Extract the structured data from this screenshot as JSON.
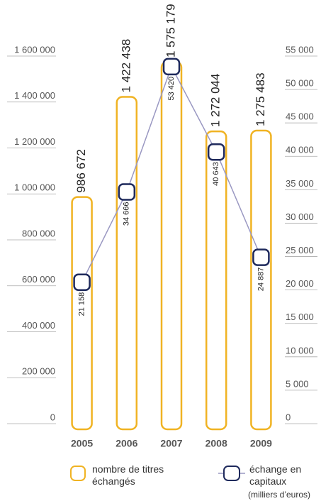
{
  "chart_data": {
    "type": "bar",
    "categories": [
      "2005",
      "2006",
      "2007",
      "2008",
      "2009"
    ],
    "series": [
      {
        "name": "nombre de titres échangés",
        "color": "#f0b323",
        "values": [
          986672,
          1422438,
          1575179,
          1272044,
          1275483
        ],
        "value_labels": [
          "986 672",
          "1 422 438",
          "1 575 179",
          "1 272 044",
          "1 275 483"
        ]
      },
      {
        "name": "échange en capitaux",
        "note": "(milliers d’euros)",
        "type": "line",
        "axis": "y2",
        "color": "#1f2a5c",
        "line_color": "#9a98c2",
        "values": [
          21158,
          34666,
          53420,
          40643,
          24887
        ],
        "value_labels": [
          "21 158",
          "34 666",
          "53 420",
          "40 643",
          "24 887"
        ]
      }
    ],
    "ylim": [
      0,
      1600000
    ],
    "yticks": [
      0,
      {
        "value": 200000,
        "label": "200 000"
      },
      {
        "value": 400000,
        "label": "400 000"
      },
      {
        "value": 600000,
        "label": "600 000"
      },
      {
        "value": 800000,
        "label": "800 000"
      },
      {
        "value": 1000000,
        "label": "1 000 000"
      },
      {
        "value": 1200000,
        "label": "1 200 000"
      },
      {
        "value": 1400000,
        "label": "1 400 000"
      },
      {
        "value": 1600000,
        "label": "1 600 000"
      }
    ],
    "y2lim": [
      0,
      55000
    ],
    "y2ticks": [
      0,
      {
        "value": 5000,
        "label": "5 000"
      },
      {
        "value": 10000,
        "label": "10 000"
      },
      {
        "value": 15000,
        "label": "15 000"
      },
      {
        "value": 20000,
        "label": "20 000"
      },
      {
        "value": 25000,
        "label": "25 000"
      },
      {
        "value": 30000,
        "label": "30 000"
      },
      {
        "value": 35000,
        "label": "35 000"
      },
      {
        "value": 40000,
        "label": "40 000"
      },
      {
        "value": 45000,
        "label": "45 000"
      },
      {
        "value": 50000,
        "label": "50 000"
      },
      {
        "value": 55000,
        "label": "55 000"
      }
    ]
  }
}
